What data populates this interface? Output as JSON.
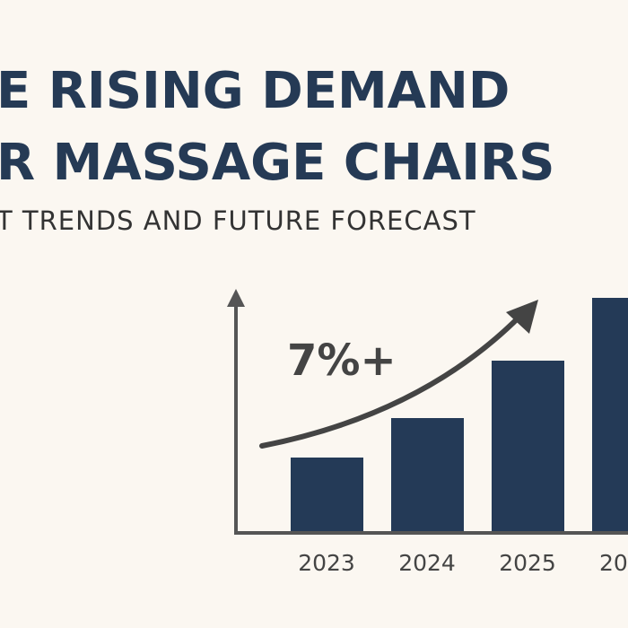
{
  "chart_data": {
    "type": "bar",
    "title": [
      "E RISING DEMAND",
      "R MASSAGE CHAIRS"
    ],
    "subtitle": "T TRENDS AND FUTURE FORECAST",
    "annotation": "7%+",
    "categories": [
      "2023",
      "2024",
      "2025",
      "20"
    ],
    "values": [
      82,
      126,
      190,
      260
    ],
    "color": "#243a57",
    "ylim": [
      0,
      267
    ]
  }
}
